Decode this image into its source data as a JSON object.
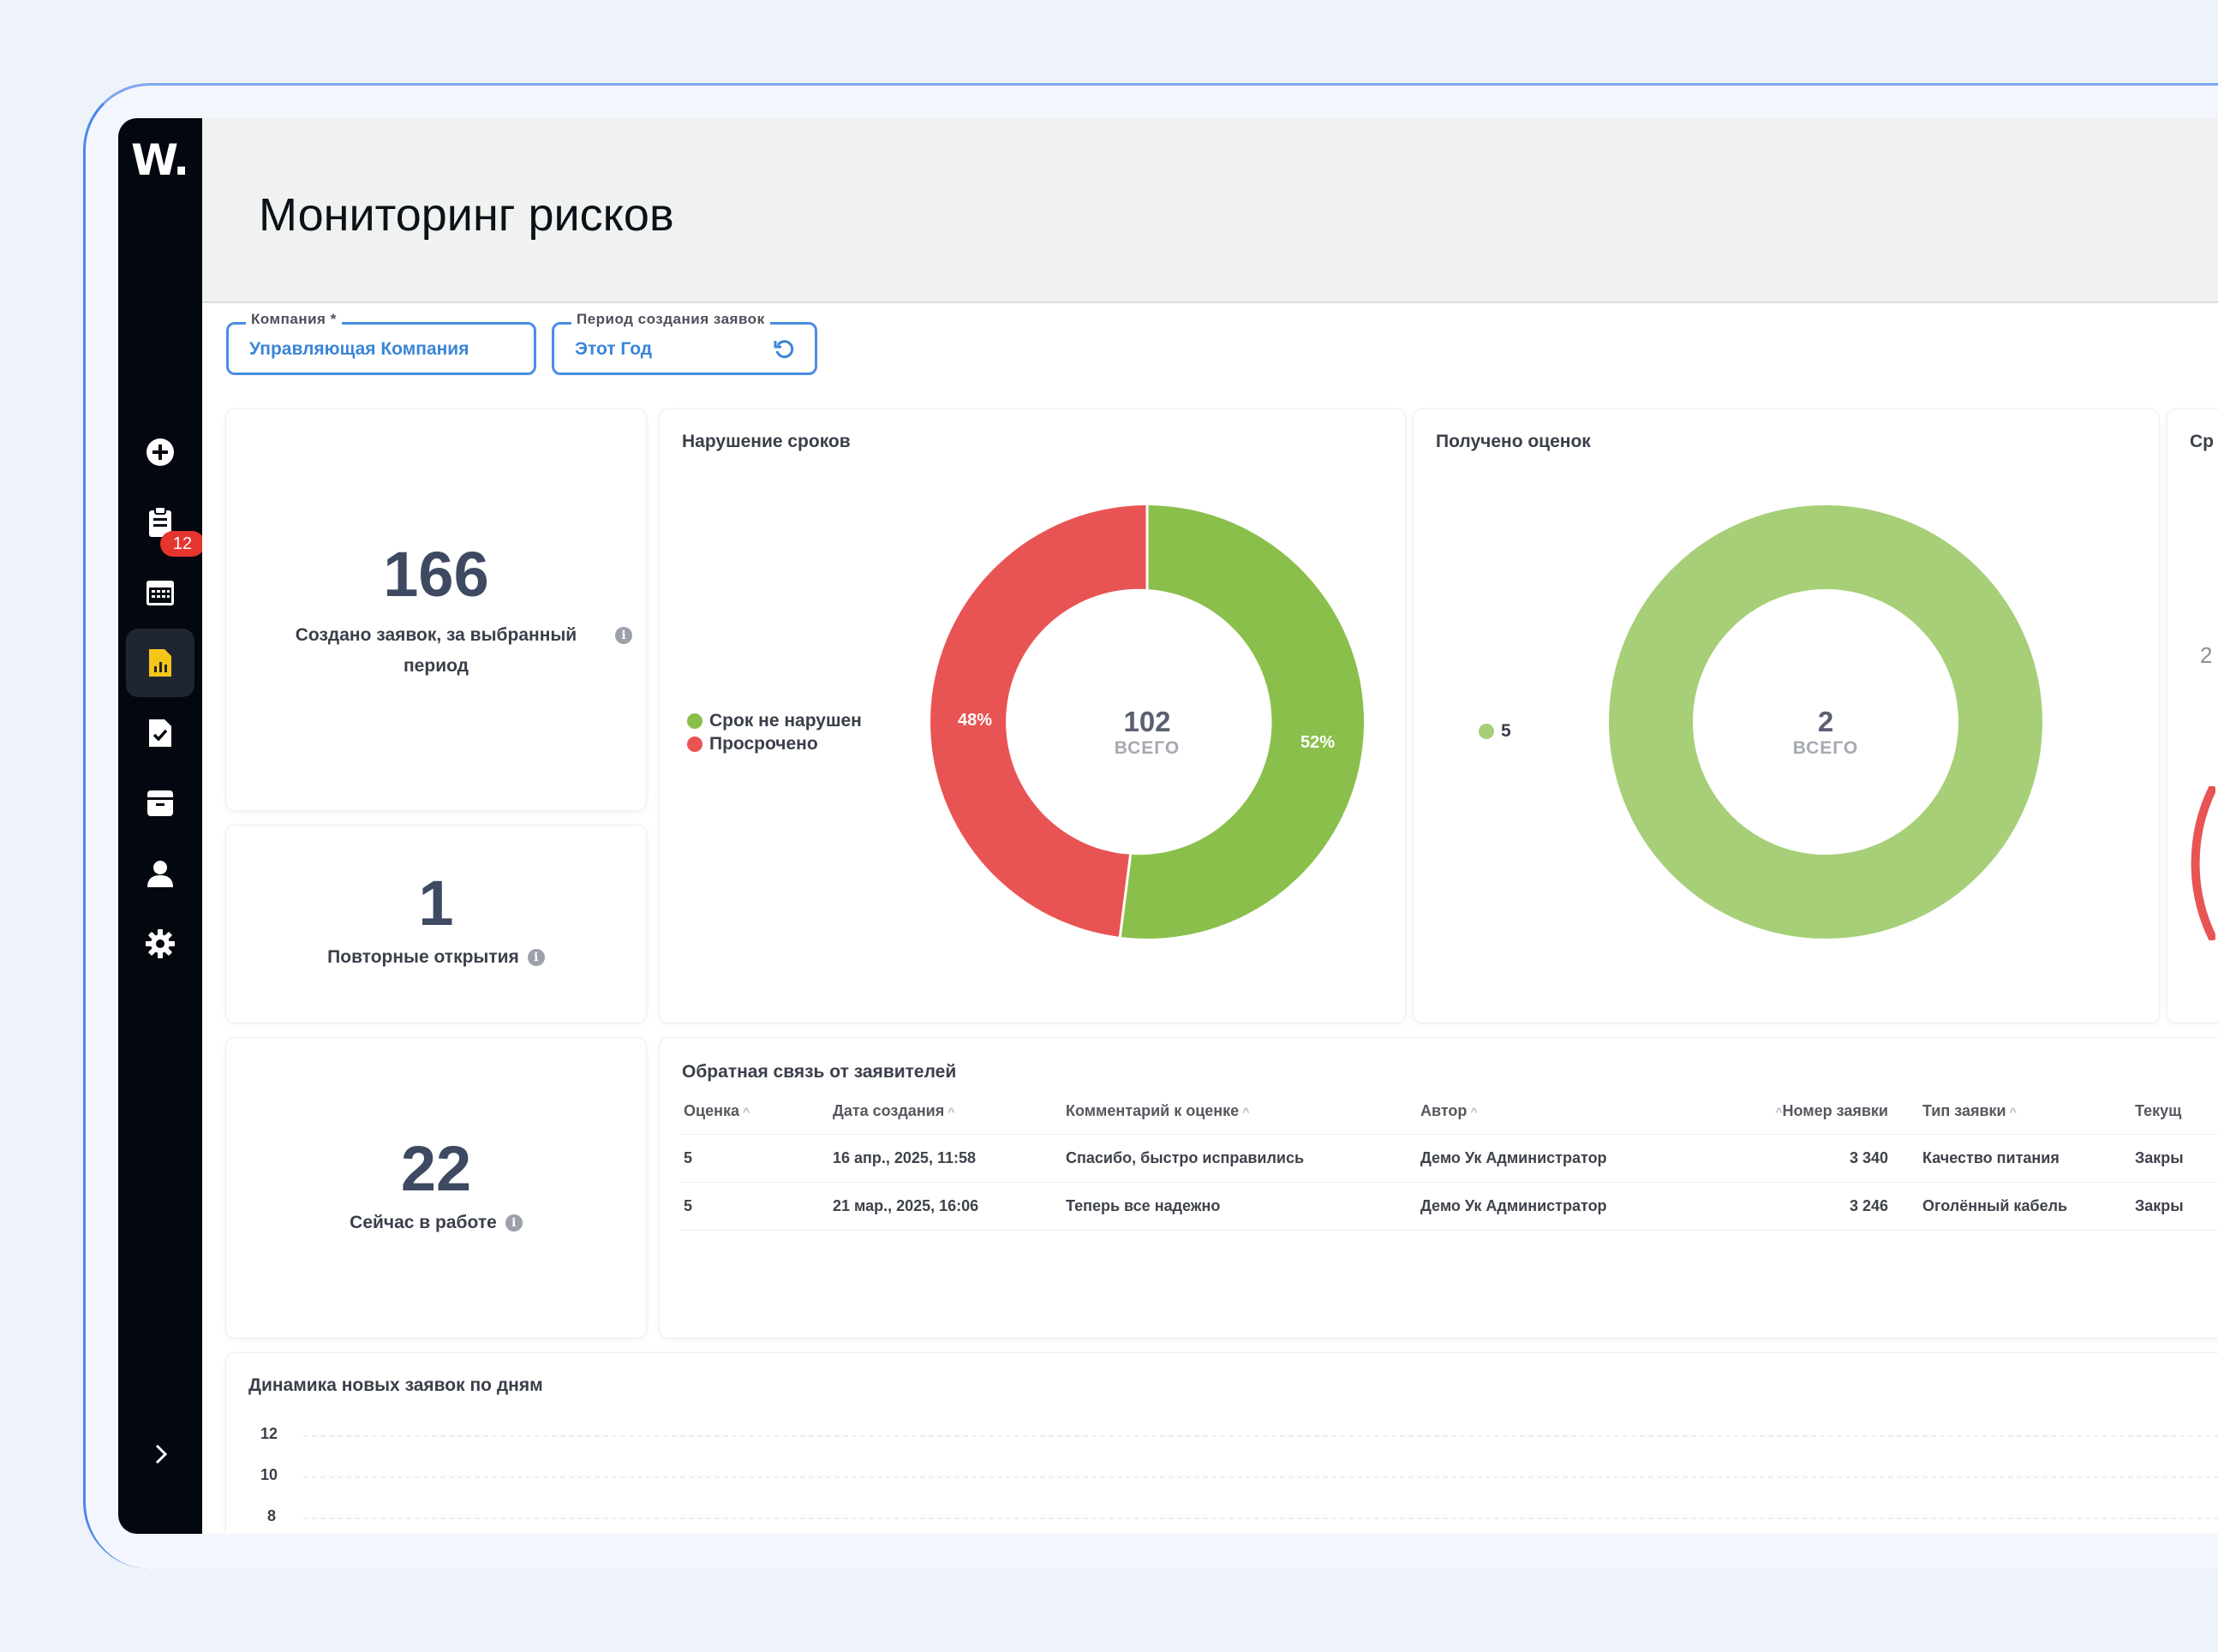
{
  "app": {
    "logo": "W.",
    "page_title": "Мониторинг рисков",
    "tasks_badge": "12"
  },
  "sidebar": {
    "items": [
      {
        "name": "create",
        "icon": "plus-circle-icon"
      },
      {
        "name": "tasks",
        "icon": "clipboard-icon"
      },
      {
        "name": "calendar",
        "icon": "calendar-icon"
      },
      {
        "name": "reports",
        "icon": "report-icon",
        "active": true
      },
      {
        "name": "checklists",
        "icon": "checklist-icon"
      },
      {
        "name": "archive",
        "icon": "archive-icon"
      },
      {
        "name": "users",
        "icon": "user-icon"
      },
      {
        "name": "settings",
        "icon": "gear-icon"
      }
    ]
  },
  "filters": {
    "company": {
      "label": "Компания *",
      "value": "Управляющая Компания"
    },
    "period": {
      "label": "Период создания заявок",
      "value": "Этот Год"
    }
  },
  "kpis": {
    "created": {
      "value": "166",
      "label": "Создано заявок, за выбранный период"
    },
    "reopened": {
      "value": "1",
      "label": "Повторные открытия"
    },
    "in_progress": {
      "value": "22",
      "label": "Сейчас в работе"
    }
  },
  "deadlines_card": {
    "title": "Нарушение сроков",
    "total": "102",
    "total_label": "ВСЕГО",
    "legend": [
      "Срок не нарушен",
      "Просрочено"
    ],
    "colors": {
      "ok": "#8bbf4c",
      "overdue": "#e85453"
    },
    "pct_ok": "52%",
    "pct_overdue": "48%"
  },
  "ratings_card": {
    "title": "Получено оценок",
    "total": "2",
    "total_label": "ВСЕГО",
    "legend": [
      "5"
    ],
    "color": "#a6cf78"
  },
  "third_card": {
    "title": "Ср",
    "value": "2"
  },
  "chart_data": [
    {
      "type": "pie",
      "title": "Нарушение сроков",
      "categories": [
        "Срок не нарушен",
        "Просрочено"
      ],
      "values": [
        52,
        48
      ],
      "total": 102
    },
    {
      "type": "pie",
      "title": "Получено оценок",
      "categories": [
        "5"
      ],
      "values": [
        2
      ],
      "total": 2
    }
  ],
  "feedback": {
    "title": "Обратная связь от заявителей",
    "columns": [
      "Оценка",
      "Дата создания",
      "Комментарий к оценке",
      "Автор",
      "Номер заявки",
      "Тип заявки",
      "Текущ"
    ],
    "rows": [
      [
        "5",
        "16 апр., 2025, 11:58",
        "Спасибо, быстро исправились",
        "Демо Ук Администратор",
        "3 340",
        "Качество питания",
        "Закры"
      ],
      [
        "5",
        "21 мар., 2025, 16:06",
        "Теперь все надежно",
        "Демо Ук Администратор",
        "3 246",
        "Оголённый кабель",
        "Закры"
      ]
    ]
  },
  "daily": {
    "title": "Динамика новых заявок по дням",
    "y_ticks": [
      "12",
      "10",
      "8"
    ]
  }
}
